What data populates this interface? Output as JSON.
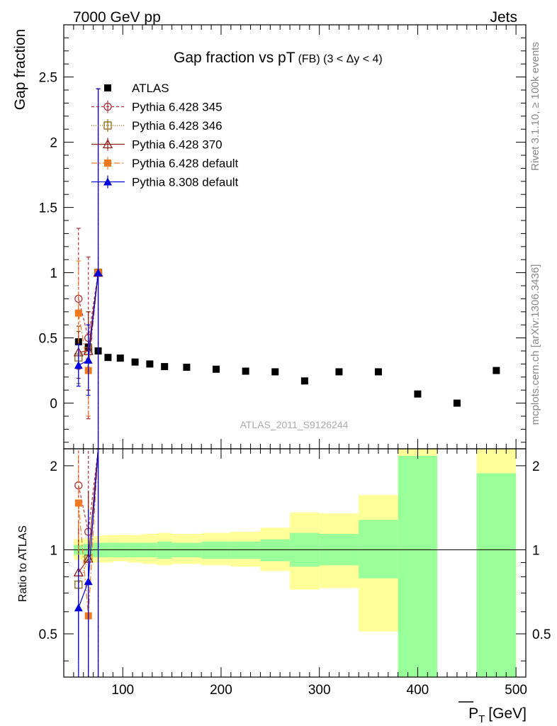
{
  "header": {
    "left": "7000 GeV pp",
    "right": "Jets"
  },
  "side_labels": {
    "top": "Rivet 3.1.10, ≥ 100k events",
    "bottom": "mcplots.cern.ch [arXiv:1306.3436]"
  },
  "chart_data": [
    {
      "type": "scatter",
      "panel": "main",
      "title": "Gap fraction vs pT",
      "title_sub": "(FB) (3 < Δy < 4)",
      "ylabel": "Gap fraction",
      "watermark": "ATLAS_2011_S9126244",
      "xlim": [
        40,
        510
      ],
      "ylim": [
        -0.35,
        2.9
      ],
      "yticks": [
        0,
        0.5,
        1,
        1.5,
        2,
        2.5
      ],
      "ytick_labels": [
        "0",
        "0.5",
        "1",
        "1.5",
        "2",
        "2.5"
      ],
      "legend_position": "top-left",
      "series": [
        {
          "name": "ATLAS",
          "color": "#000000",
          "marker": "square-filled",
          "x": [
            55,
            65,
            75,
            85,
            97.5,
            112.5,
            127.5,
            142.5,
            165,
            195,
            225,
            255,
            285,
            320,
            360,
            400,
            440,
            480
          ],
          "y": [
            0.47,
            0.43,
            0.4,
            0.35,
            0.345,
            0.315,
            0.3,
            0.28,
            0.275,
            0.26,
            0.245,
            0.24,
            0.17,
            0.24,
            0.24,
            0.07,
            0.0,
            0.25
          ]
        },
        {
          "name": "Pythia 6.428 345",
          "color": "#b0303a",
          "marker": "circle-open",
          "dash": "4,3",
          "x": [
            55,
            65,
            75
          ],
          "y": [
            0.8,
            0.5,
            1.0
          ],
          "err": [
            0.54,
            0.62,
            1.41
          ]
        },
        {
          "name": "Pythia 6.428 346",
          "color": "#8b6914",
          "marker": "square-open",
          "dash": "1,2",
          "x": [
            55,
            65,
            75
          ],
          "y": [
            0.35,
            0.4,
            1.0
          ],
          "err": [
            0.2,
            0.3,
            1.41
          ]
        },
        {
          "name": "Pythia 6.428 370",
          "color": "#8b1a1a",
          "marker": "triangle-open",
          "dash": "",
          "x": [
            55,
            65,
            75
          ],
          "y": [
            0.39,
            0.4,
            1.0
          ],
          "err": [
            0.2,
            0.3,
            1.41
          ]
        },
        {
          "name": "Pythia 6.428 default",
          "color": "#f07820",
          "marker": "square-filled",
          "dash": "8,3,2,3",
          "x": [
            55,
            65,
            75
          ],
          "y": [
            0.69,
            0.25,
            1.0
          ],
          "err": [
            0.4,
            0.35,
            1.41
          ]
        },
        {
          "name": "Pythia 8.308 default",
          "color": "#0000dd",
          "marker": "triangle-filled",
          "dash": "",
          "x": [
            55,
            65,
            75
          ],
          "y": [
            0.29,
            0.33,
            1.0
          ],
          "err": [
            0.16,
            0.27,
            1.41
          ]
        }
      ]
    },
    {
      "type": "line",
      "panel": "ratio",
      "ylabel": "Ratio to ATLAS",
      "xlabel": "P̅T [GeV]",
      "xlabel_main": "P",
      "xlabel_sub": "T",
      "xlabel_unit": "[GeV]",
      "xlim": [
        40,
        510
      ],
      "ylim": [
        0.35,
        2.3
      ],
      "yscale": "log",
      "yticks": [
        0.5,
        1,
        2
      ],
      "ytick_labels": [
        "0.5",
        "1",
        "2"
      ],
      "xticks": [
        100,
        200,
        300,
        400,
        500
      ],
      "xtick_labels": [
        "100",
        "200",
        "300",
        "400",
        "500"
      ],
      "uncertainty_bands": {
        "bins": [
          [
            50,
            60
          ],
          [
            60,
            70
          ],
          [
            70,
            80
          ],
          [
            80,
            90
          ],
          [
            90,
            105
          ],
          [
            105,
            120
          ],
          [
            120,
            135
          ],
          [
            135,
            150
          ],
          [
            150,
            180
          ],
          [
            180,
            210
          ],
          [
            210,
            240
          ],
          [
            240,
            270
          ],
          [
            270,
            300
          ],
          [
            300,
            340
          ],
          [
            340,
            380
          ],
          [
            380,
            420
          ],
          [
            460,
            500
          ]
        ],
        "green_low": [
          0.96,
          0.95,
          0.94,
          0.94,
          0.94,
          0.94,
          0.94,
          0.93,
          0.94,
          0.93,
          0.93,
          0.91,
          0.87,
          0.88,
          0.79,
          0.0,
          0.0
        ],
        "green_high": [
          1.04,
          1.05,
          1.06,
          1.06,
          1.06,
          1.06,
          1.06,
          1.07,
          1.06,
          1.07,
          1.07,
          1.09,
          1.15,
          1.14,
          1.28,
          2.17,
          1.88
        ],
        "yellow_low": [
          0.92,
          0.91,
          0.9,
          0.9,
          0.91,
          0.9,
          0.89,
          0.88,
          0.89,
          0.88,
          0.87,
          0.84,
          0.72,
          0.73,
          0.51,
          0.0,
          0.0
        ],
        "yellow_high": [
          1.09,
          1.1,
          1.12,
          1.13,
          1.13,
          1.13,
          1.14,
          1.15,
          1.14,
          1.15,
          1.16,
          1.2,
          1.36,
          1.35,
          1.57,
          3.0,
          3.0
        ]
      },
      "series": [
        {
          "name": "Pythia 6.428 345",
          "x": [
            55,
            65,
            75
          ],
          "y": [
            1.7,
            1.16,
            2.5
          ]
        },
        {
          "name": "Pythia 6.428 346",
          "x": [
            55,
            65,
            75
          ],
          "y": [
            0.75,
            0.93,
            2.5
          ]
        },
        {
          "name": "Pythia 6.428 370",
          "x": [
            55,
            65,
            75
          ],
          "y": [
            0.83,
            0.93,
            2.5
          ]
        },
        {
          "name": "Pythia 6.428 default",
          "x": [
            55,
            65,
            75
          ],
          "y": [
            1.47,
            0.58,
            2.5
          ]
        },
        {
          "name": "Pythia 8.308 default",
          "x": [
            55,
            65,
            75
          ],
          "y": [
            0.62,
            0.77,
            2.5
          ]
        }
      ]
    }
  ]
}
